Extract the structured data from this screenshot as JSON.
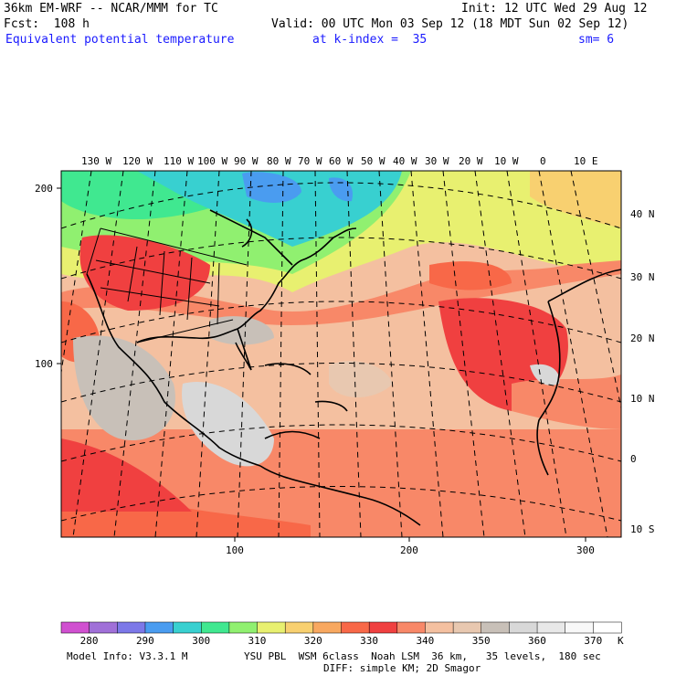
{
  "header": {
    "model_title": "36km EM-WRF -- NCAR/MMM for TC",
    "init": "Init: 12 UTC Wed 29 Aug 12",
    "forecast": "Fcst:  108 h",
    "valid": "Valid: 00 UTC Mon 03 Sep 12 (18 MDT Sun 02 Sep 12)",
    "field": "Equivalent potential temperature",
    "level": "at k-index =  35",
    "smoothing": "sm= 6"
  },
  "map": {
    "top_longitude_labels": [
      "130 W",
      "120 W",
      "110 W",
      "100 W",
      "90 W",
      "80 W",
      "70 W",
      "60 W",
      "50 W",
      "40 W",
      "30 W",
      "20 W",
      "10 W",
      "0",
      "10 E"
    ],
    "right_latitude_labels": [
      "40 N",
      "30 N",
      "20 N",
      "10 N",
      "0",
      "10 S"
    ],
    "left_grid_labels": [
      "200",
      "100"
    ],
    "bottom_grid_labels": [
      "100",
      "200",
      "300"
    ]
  },
  "colorbar": {
    "colors": [
      "#d050d0",
      "#a070d8",
      "#7c78e8",
      "#4a9cf0",
      "#38d0d0",
      "#40e890",
      "#90f070",
      "#e8f070",
      "#f8d070",
      "#f8a860",
      "#f86848",
      "#f04040",
      "#f88868",
      "#f4c0a0",
      "#e8c8b0",
      "#c8c0b8",
      "#d8d8d8",
      "#e8e8e8",
      "#f8f8f8",
      "#ffffff"
    ],
    "tick_labels": [
      "280",
      "290",
      "300",
      "310",
      "320",
      "330",
      "340",
      "350",
      "360",
      "370"
    ],
    "unit": "K"
  },
  "footer": {
    "model_info": "Model Info: V3.3.1 M",
    "physics": "YSU PBL  WSM 6class  Noah LSM  36 km,   35 levels,  180 sec",
    "diffusion": "DIFF: simple KM; 2D Smagor"
  }
}
